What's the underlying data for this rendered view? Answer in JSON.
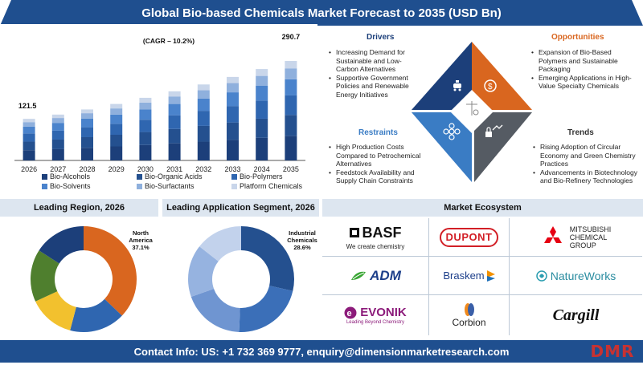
{
  "title": "Global Bio-based Chemicals Market Forecast to 2035 (USD Bn)",
  "chart_data": {
    "type": "bar",
    "stacked": true,
    "categories": [
      "2026",
      "2027",
      "2028",
      "2029",
      "2030",
      "2031",
      "2032",
      "2033",
      "2034",
      "2035"
    ],
    "totals": [
      121.5,
      134,
      149,
      165,
      183,
      202,
      222,
      244,
      267,
      290.7
    ],
    "series": [
      {
        "name": "Bio-Alcohols",
        "color": "#1c3f7a",
        "values": [
          30,
          33,
          37,
          41,
          45,
          50,
          55,
          60,
          66,
          72
        ]
      },
      {
        "name": "Bio-Organic Acids",
        "color": "#24508f",
        "values": [
          25,
          28,
          31,
          34,
          38,
          42,
          46,
          51,
          56,
          61
        ]
      },
      {
        "name": "Bio-Polymers",
        "color": "#2f66b0",
        "values": [
          24,
          26,
          29,
          32,
          36,
          40,
          44,
          48,
          53,
          57
        ]
      },
      {
        "name": "Bio-Solvents",
        "color": "#4a83cc",
        "values": [
          20,
          22,
          25,
          27,
          30,
          33,
          36,
          40,
          43,
          47
        ]
      },
      {
        "name": "Bio-Surfactants",
        "color": "#8fb0dd",
        "values": [
          13,
          15,
          16,
          18,
          20,
          22,
          24,
          27,
          29,
          32
        ]
      },
      {
        "name": "Platform Chemicals",
        "color": "#c9d6ea",
        "values": [
          9.5,
          10,
          11,
          13,
          14,
          15,
          17,
          18,
          20,
          21.7
        ]
      }
    ],
    "labels": {
      "first": "121.5",
      "last": "290.7",
      "cagr": "(CAGR – 10.2%)"
    }
  },
  "drivers": {
    "heading": "Drivers",
    "items": [
      "Increasing Demand for Sustainable and Low-Carbon Alternatives",
      "Supportive Government Policies and Renewable Energy Initiatives"
    ]
  },
  "opportunities": {
    "heading": "Opportunities",
    "items": [
      "Expansion of Bio-Based Polymers and Sustainable Packaging",
      "Emerging Applications in High-Value Specialty Chemicals"
    ]
  },
  "restraints": {
    "heading": "Restraints",
    "items": [
      "High Production Costs Compared to Petrochemical Alternatives",
      "Feedstock Availability and Supply Chain Constraints"
    ]
  },
  "trends": {
    "heading": "Trends",
    "items": [
      "Rising Adoption of Circular Economy and Green Chemistry Practices",
      "Advancements in Biotechnology and Bio-Refinery Technologies"
    ]
  },
  "diamond_colors": {
    "drivers": "#1c3f7a",
    "opportunities": "#d9661f",
    "restraints": "#3a7cc4",
    "trends": "#555b63"
  },
  "region": {
    "heading": "Leading Region, 2026",
    "label_name": "North America",
    "label_value": "37.1%",
    "slices": [
      {
        "value": 37.1,
        "color": "#d9661f"
      },
      {
        "value": 17,
        "color": "#2f66b0"
      },
      {
        "value": 14,
        "color": "#f2c12e"
      },
      {
        "value": 16,
        "color": "#4f7f2e"
      },
      {
        "value": 15.9,
        "color": "#1c3f7a"
      }
    ]
  },
  "application": {
    "heading": "Leading Application Segment, 2026",
    "label_name": "Industrial Chemicals",
    "label_value": "28.6%",
    "slices": [
      {
        "value": 28.6,
        "color": "#24508f"
      },
      {
        "value": 22,
        "color": "#3b6fb8"
      },
      {
        "value": 19,
        "color": "#6f95d1"
      },
      {
        "value": 16,
        "color": "#96b3e0"
      },
      {
        "value": 14.4,
        "color": "#c2d2ec"
      }
    ]
  },
  "ecosystem": {
    "heading": "Market Ecosystem",
    "basf": "BASF",
    "basf_tag": "We create chemistry",
    "dupont": "DUPONT",
    "mitsubishi": [
      "MITSUBISHI",
      "CHEMICAL",
      "GROUP"
    ],
    "adm": "ADM",
    "braskem": "Braskem",
    "natureworks": "NatureWorks",
    "evonik": "EVONIK",
    "evonik_tag": "Leading Beyond Chemistry",
    "corbion": "Corbion",
    "cargill": "Cargill"
  },
  "footer": {
    "contact": "Contact Info: US: +1 732 369 9777, enquiry@dimensionmarketresearch.com",
    "logo": "DMR"
  }
}
